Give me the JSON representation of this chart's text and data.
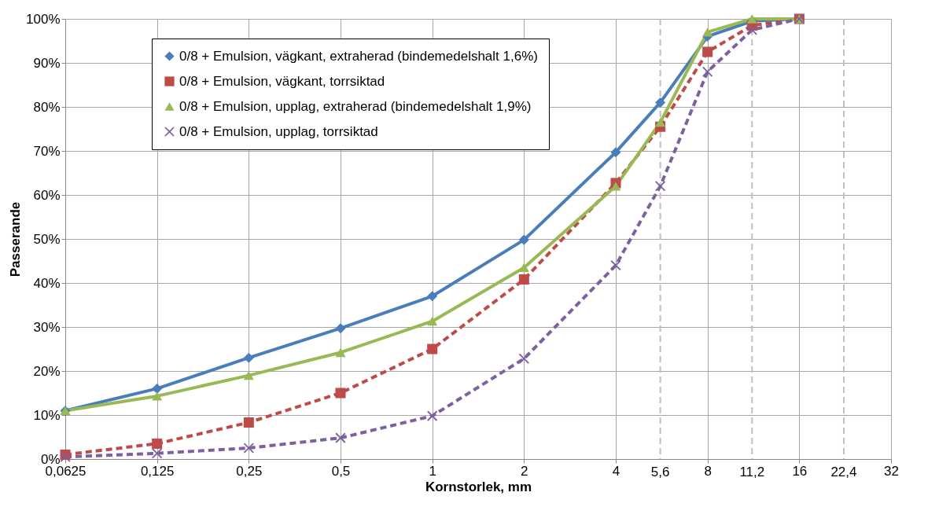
{
  "chart_data": {
    "type": "line",
    "xlabel": "Kornstorlek, mm",
    "ylabel": "Passerande",
    "log": "x",
    "x": [
      0.0625,
      0.125,
      0.25,
      0.5,
      1,
      2,
      4,
      5.6,
      8,
      11.2,
      16
    ],
    "series": [
      {
        "name": "0/8 + Emulsion, vägkant, extraherad (bindemedelshalt 1,6%)",
        "color": "#4a7ebb",
        "marker": "diamond",
        "line_style": "solid",
        "values": [
          11,
          16,
          23,
          29.7,
          37,
          49.8,
          69.7,
          81,
          96,
          99.5,
          100
        ]
      },
      {
        "name": "0/8 + Emulsion, vägkant, torrsiktad",
        "color": "#be4b48",
        "marker": "square",
        "line_style": "dashed",
        "values": [
          1,
          3.5,
          8.3,
          15,
          25,
          40.8,
          62.7,
          75.5,
          92.5,
          98.5,
          100
        ]
      },
      {
        "name": "0/8 + Emulsion, upplag, extraherad (bindemedelshalt 1,9%)",
        "color": "#98b954",
        "marker": "triangle",
        "line_style": "solid",
        "values": [
          11,
          14.3,
          19,
          24.2,
          31.3,
          43.5,
          62,
          76.5,
          97,
          100,
          100
        ]
      },
      {
        "name": "0/8 + Emulsion, upplag, torrsiktad",
        "color": "#7d60a0",
        "marker": "cross",
        "line_style": "dashed",
        "values": [
          0.5,
          1.3,
          2.5,
          4.8,
          9.8,
          22.8,
          44,
          62,
          88,
          97.5,
          100
        ]
      }
    ],
    "xlim": [
      0.0625,
      32
    ],
    "xticks": [
      {
        "value": 0.0625,
        "label": "0,0625"
      },
      {
        "value": 0.125,
        "label": "0,125"
      },
      {
        "value": 0.25,
        "label": "0,25"
      },
      {
        "value": 0.5,
        "label": "0,5"
      },
      1,
      2,
      4,
      8,
      16,
      32
    ],
    "ylim": [
      0,
      100
    ],
    "yticks": [
      {
        "value": 0,
        "label": "0%"
      },
      {
        "value": 10,
        "label": "10%"
      },
      {
        "value": 20,
        "label": "20%"
      },
      {
        "value": 30,
        "label": "30%"
      },
      {
        "value": 40,
        "label": "40%"
      },
      {
        "value": 50,
        "label": "50%"
      },
      {
        "value": 60,
        "label": "60%"
      },
      {
        "value": 70,
        "label": "70%"
      },
      {
        "value": 80,
        "label": "80%"
      },
      {
        "value": 90,
        "label": "90%"
      },
      {
        "value": 100,
        "label": "100%"
      }
    ],
    "ref_lines": [
      {
        "axis": "x",
        "value": 5.6,
        "label": "5,6",
        "color": "#bfbfbf",
        "line_style": "dashed"
      },
      {
        "axis": "x",
        "value": 11.2,
        "label": "11,2",
        "color": "#bfbfbf",
        "line_style": "dashed"
      },
      {
        "axis": "x",
        "value": 22.4,
        "label": "22,4",
        "color": "#bfbfbf",
        "line_style": "dashed"
      }
    ],
    "grid": true,
    "legend": "top left"
  }
}
